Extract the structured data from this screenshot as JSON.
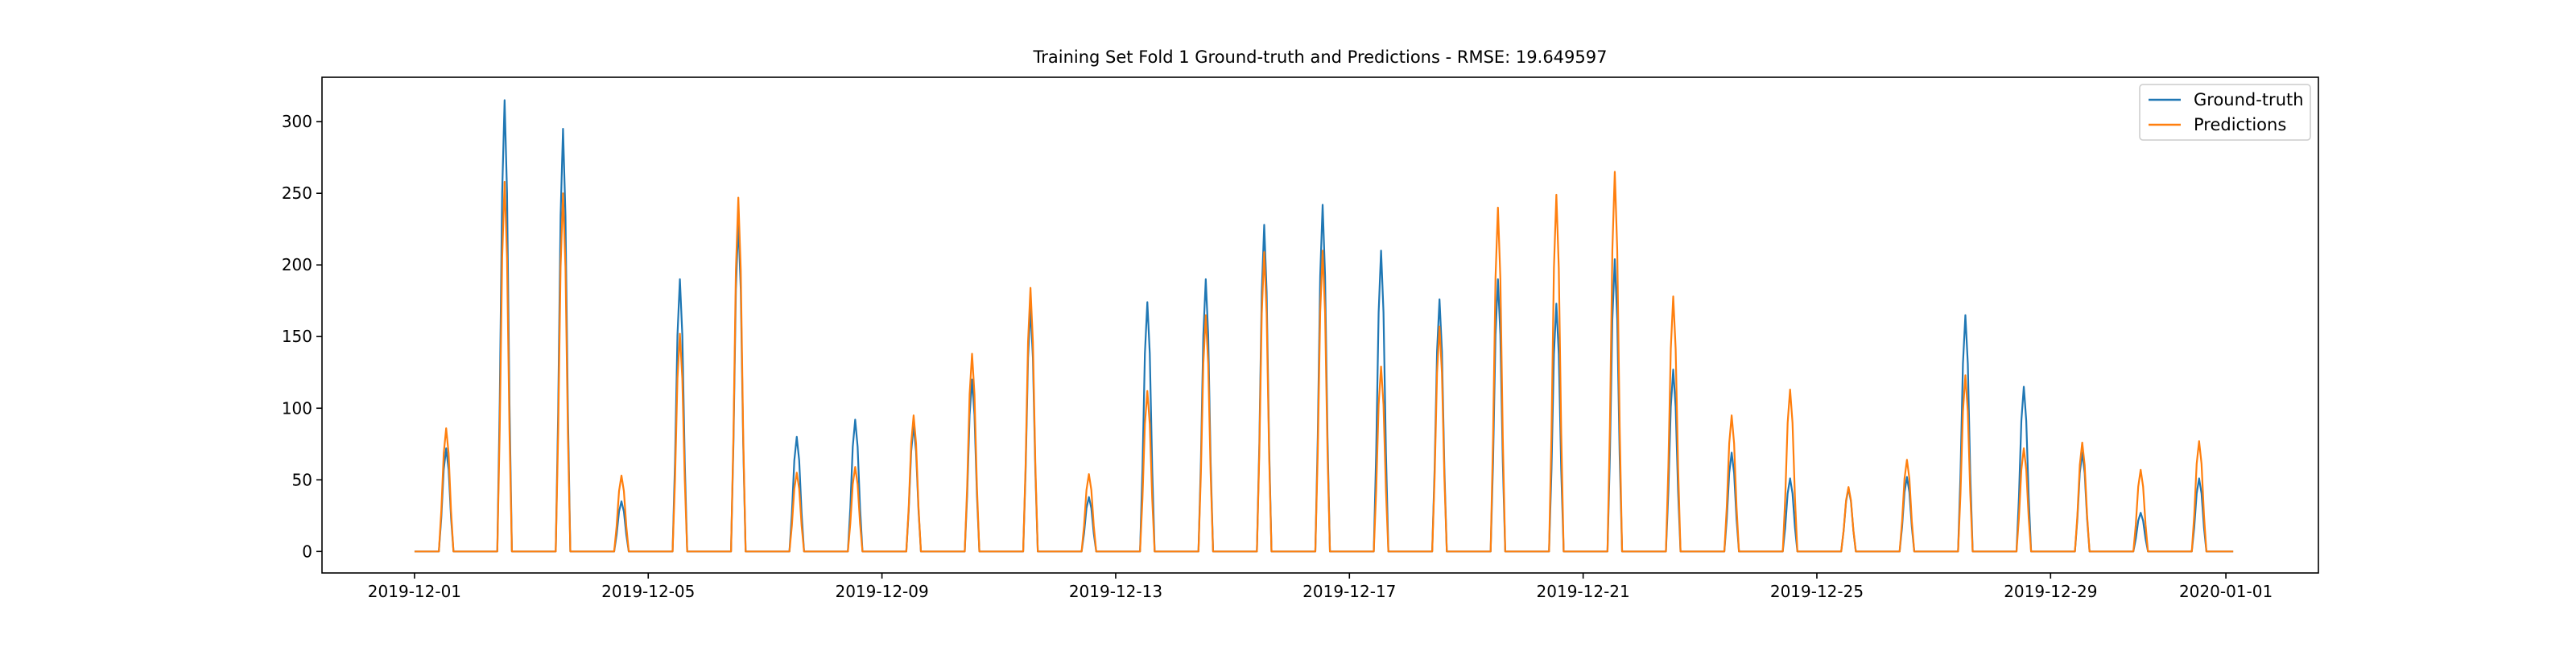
{
  "chart_data": {
    "type": "line",
    "title": "Training Set Fold 1 Ground-truth and Predictions - RMSE: 19.649597",
    "xlabel": "",
    "ylabel": "",
    "x_range": [
      "2019-11-29T10:00",
      "2020-01-02T14:00"
    ],
    "ylim": [
      -15,
      331
    ],
    "y_ticks": [
      0,
      50,
      100,
      150,
      200,
      250,
      300
    ],
    "y_tick_labels": [
      "0",
      "50",
      "100",
      "150",
      "200",
      "250",
      "300"
    ],
    "x_ticks": [
      "2019-12-01",
      "2019-12-05",
      "2019-12-09",
      "2019-12-13",
      "2019-12-17",
      "2019-12-21",
      "2019-12-25",
      "2019-12-29",
      "2020-01-01"
    ],
    "x_tick_labels": [
      "2019-12-01",
      "2019-12-05",
      "2019-12-09",
      "2019-12-13",
      "2019-12-17",
      "2019-12-21",
      "2019-12-25",
      "2019-12-29",
      "2020-01-01"
    ],
    "grid": false,
    "legend_position": "top-right",
    "data_start": "2019-12-01T00:00",
    "data_end": "2020-01-01T03:00",
    "daily_peaks": {
      "dates": [
        "2019-12-01",
        "2019-12-02",
        "2019-12-03",
        "2019-12-04",
        "2019-12-05",
        "2019-12-06",
        "2019-12-07",
        "2019-12-08",
        "2019-12-09",
        "2019-12-10",
        "2019-12-11",
        "2019-12-12",
        "2019-12-13",
        "2019-12-14",
        "2019-12-15",
        "2019-12-16",
        "2019-12-17",
        "2019-12-18",
        "2019-12-19",
        "2019-12-20",
        "2019-12-21",
        "2019-12-22",
        "2019-12-23",
        "2019-12-24",
        "2019-12-25",
        "2019-12-26",
        "2019-12-27",
        "2019-12-28",
        "2019-12-29",
        "2019-12-30",
        "2019-12-31"
      ],
      "peak_hour": 13,
      "half_width_hours": 3
    },
    "series": [
      {
        "name": "Ground-truth",
        "color": "#1f77b4",
        "values": [
          72,
          315,
          295,
          35,
          190,
          230,
          80,
          92,
          88,
          120,
          170,
          38,
          174,
          190,
          228,
          242,
          210,
          176,
          190,
          173,
          204,
          127,
          69,
          51,
          44,
          52,
          165,
          115,
          69,
          27,
          51
        ]
      },
      {
        "name": "Predictions",
        "color": "#ff7f0e",
        "values": [
          86,
          258,
          250,
          53,
          152,
          247,
          55,
          59,
          95,
          138,
          184,
          54,
          112,
          165,
          209,
          210,
          129,
          157,
          240,
          249,
          265,
          178,
          95,
          113,
          45,
          64,
          123,
          72,
          76,
          57,
          77
        ]
      }
    ]
  }
}
